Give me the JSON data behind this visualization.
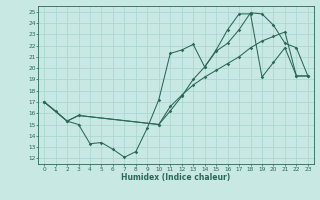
{
  "xlabel": "Humidex (Indice chaleur)",
  "xlim": [
    -0.5,
    23.5
  ],
  "ylim": [
    11.5,
    25.5
  ],
  "xticks": [
    0,
    1,
    2,
    3,
    4,
    5,
    6,
    7,
    8,
    9,
    10,
    11,
    12,
    13,
    14,
    15,
    16,
    17,
    18,
    19,
    20,
    21,
    22,
    23
  ],
  "yticks": [
    12,
    13,
    14,
    15,
    16,
    17,
    18,
    19,
    20,
    21,
    22,
    23,
    24,
    25
  ],
  "bg_color": "#c8e8e4",
  "line_color": "#2a6858",
  "grid_color": "#a8d4d0",
  "line1_x": [
    0,
    1,
    2,
    3,
    4,
    5,
    6,
    7,
    8,
    9,
    10,
    11,
    12,
    13,
    14,
    15,
    16,
    17,
    18,
    19,
    20,
    21,
    22,
    23
  ],
  "line1_y": [
    17.0,
    16.2,
    15.3,
    15.0,
    13.3,
    13.4,
    12.8,
    12.1,
    12.6,
    14.7,
    17.2,
    21.3,
    21.6,
    22.1,
    20.1,
    21.6,
    23.4,
    24.8,
    24.8,
    19.2,
    20.5,
    21.8,
    19.3,
    19.3
  ],
  "line2_x": [
    0,
    2,
    3,
    10,
    11,
    12,
    13,
    14,
    15,
    16,
    17,
    18,
    19,
    20,
    21,
    22,
    23
  ],
  "line2_y": [
    17.0,
    15.3,
    15.8,
    15.0,
    16.2,
    17.5,
    19.0,
    20.1,
    21.5,
    22.2,
    23.4,
    24.9,
    24.8,
    23.8,
    22.2,
    21.8,
    19.3
  ],
  "line3_x": [
    0,
    2,
    3,
    10,
    11,
    12,
    13,
    14,
    15,
    16,
    17,
    18,
    19,
    20,
    21,
    22,
    23
  ],
  "line3_y": [
    17.0,
    15.3,
    15.8,
    15.0,
    16.6,
    17.6,
    18.5,
    19.2,
    19.8,
    20.4,
    21.0,
    21.8,
    22.4,
    22.8,
    23.2,
    19.3,
    19.3
  ]
}
